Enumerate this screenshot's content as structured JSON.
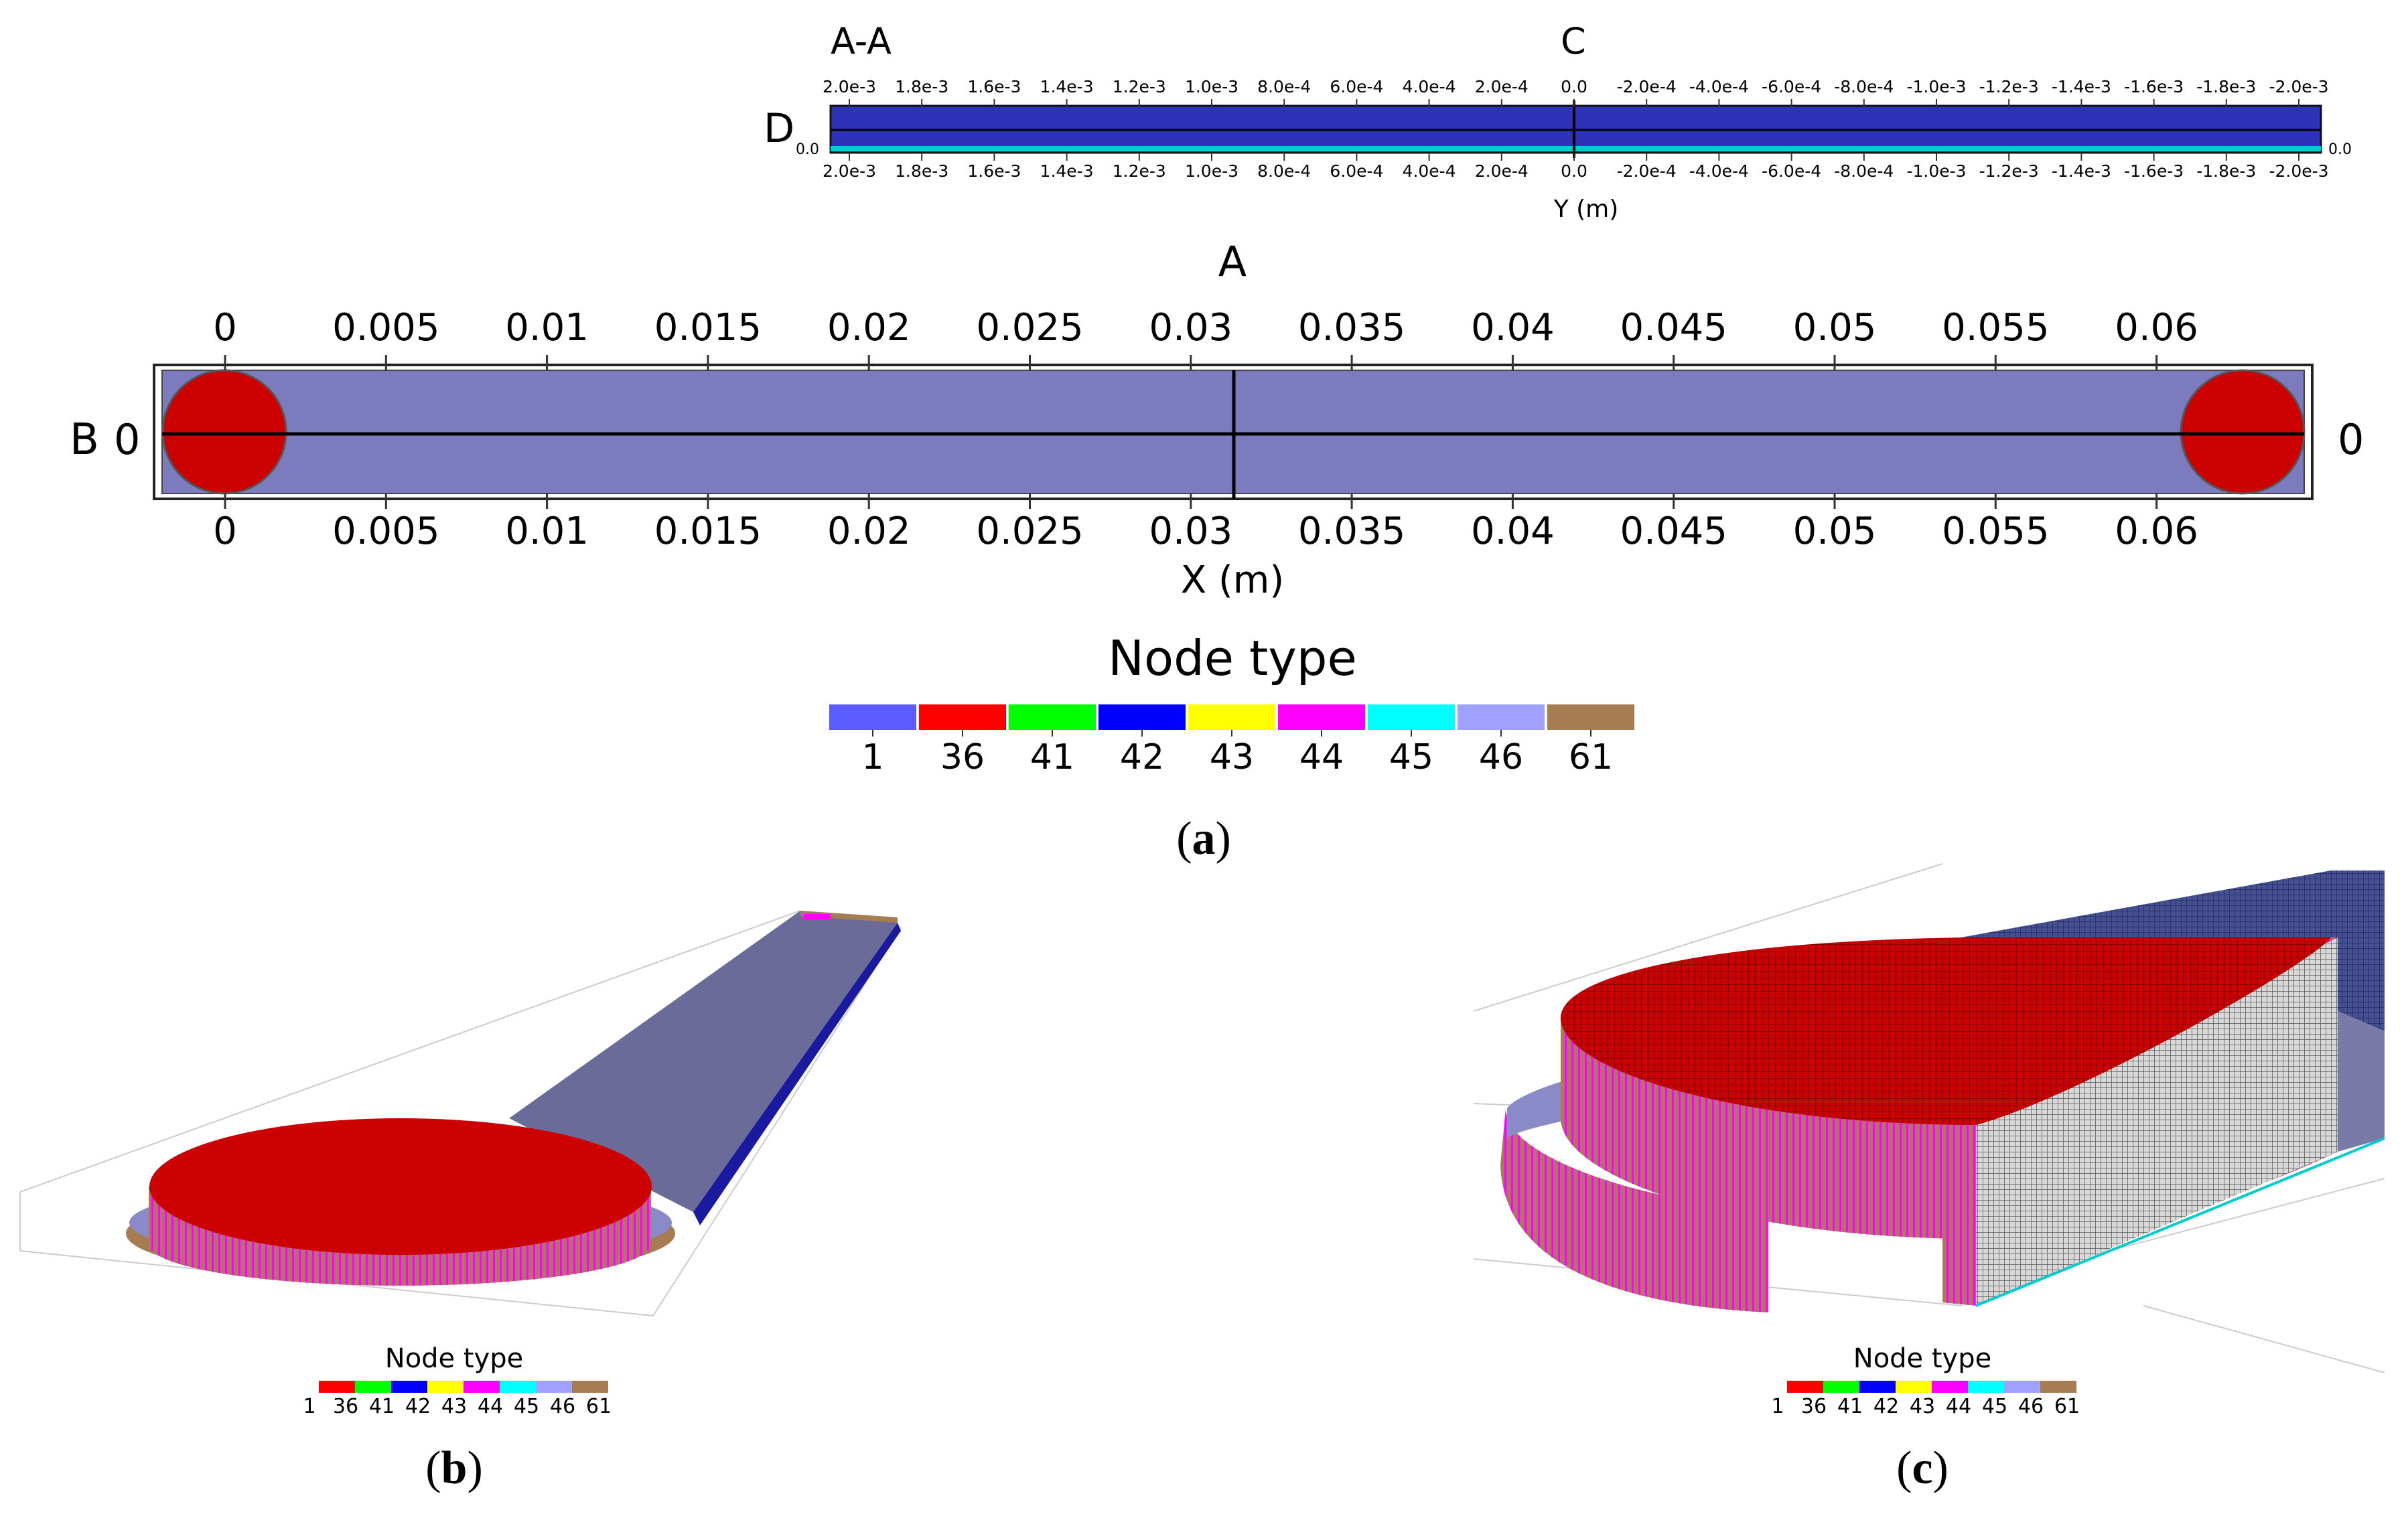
{
  "panel_a": {
    "caption_open": "(",
    "caption_letter": "a",
    "caption_close": ")",
    "section_view": {
      "title": "A-A",
      "center_label": "C",
      "left_label": "D",
      "left_zero": "0.0",
      "right_zero": "0.0",
      "axis_label": "Y (m)",
      "top_ticks": [
        "2.0e-3",
        "1.8e-3",
        "1.6e-3",
        "1.4e-3",
        "1.2e-3",
        "1.0e-3",
        "8.0e-4",
        "6.0e-4",
        "4.0e-4",
        "2.0e-4",
        "0.0",
        "-2.0e-4",
        "-4.0e-4",
        "-6.0e-4",
        "-8.0e-4",
        "-1.0e-3",
        "-1.2e-3",
        "-1.4e-3",
        "-1.6e-3",
        "-1.8e-3",
        "-2.0e-3"
      ],
      "bottom_ticks": [
        "2.0e-3",
        "1.8e-3",
        "1.6e-3",
        "1.4e-3",
        "1.2e-3",
        "1.0e-3",
        "8.0e-4",
        "6.0e-4",
        "4.0e-4",
        "2.0e-4",
        "0.0",
        "-2.0e-4",
        "-4.0e-4",
        "-6.0e-4",
        "-8.0e-4",
        "-1.0e-3",
        "-1.2e-3",
        "-1.4e-3",
        "-1.6e-3",
        "-1.8e-3",
        "-2.0e-3"
      ]
    },
    "top_view": {
      "section_label": "A",
      "left_label": "B",
      "left_zero": "0",
      "right_zero": "0",
      "axis_label": "X (m)",
      "top_ticks": [
        "0",
        "0.005",
        "0.01",
        "0.015",
        "0.02",
        "0.025",
        "0.03",
        "0.035",
        "0.04",
        "0.045",
        "0.05",
        "0.055",
        "0.06"
      ],
      "bottom_ticks": [
        "0",
        "0.005",
        "0.01",
        "0.015",
        "0.02",
        "0.025",
        "0.03",
        "0.035",
        "0.04",
        "0.045",
        "0.05",
        "0.055",
        "0.06"
      ]
    },
    "legend": {
      "title": "Node type",
      "items": [
        {
          "label": "1",
          "color": "#5a5cff"
        },
        {
          "label": "36",
          "color": "#ff0000"
        },
        {
          "label": "41",
          "color": "#00ff00"
        },
        {
          "label": "42",
          "color": "#0000ff"
        },
        {
          "label": "43",
          "color": "#ffff00"
        },
        {
          "label": "44",
          "color": "#ff00ff"
        },
        {
          "label": "45",
          "color": "#00ffff"
        },
        {
          "label": "46",
          "color": "#a0a0ff"
        },
        {
          "label": "61",
          "color": "#a67c52"
        }
      ]
    }
  },
  "panel_b": {
    "caption_open": "(",
    "caption_letter": "b",
    "caption_close": ")",
    "legend_title": "Node type",
    "legend_labels": [
      "1",
      "36",
      "41",
      "42",
      "43",
      "44",
      "45",
      "46",
      "61"
    ]
  },
  "panel_c": {
    "caption_open": "(",
    "caption_letter": "c",
    "caption_close": ")",
    "legend_title": "Node type",
    "legend_labels": [
      "1",
      "36",
      "41",
      "42",
      "43",
      "44",
      "45",
      "46",
      "61"
    ]
  },
  "colors": {
    "channel": "#7b7bbd",
    "section_fill": "#2d33b8",
    "reservoir": "#cc0000",
    "wall": "#a67c52",
    "side": "#ff00ff",
    "mesh_grey": "#b8b8b8",
    "top_blue": "#6b6b99"
  }
}
